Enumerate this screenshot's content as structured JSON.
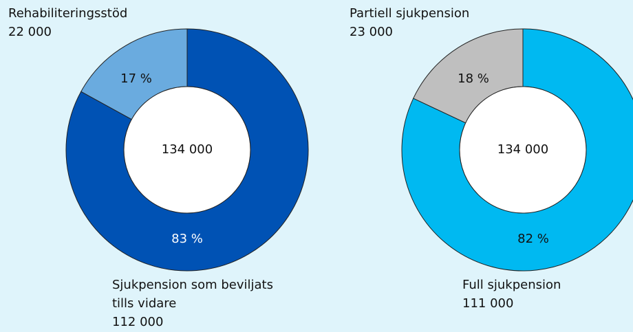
{
  "chart_data": [
    {
      "type": "pie",
      "categories": [
        "Sjukpension som beviljats tills vidare",
        "Rehabiliteringsstöd"
      ],
      "values": [
        83,
        17
      ],
      "value_labels": [
        "83 %",
        "17 %"
      ],
      "counts": [
        {
          "value": 112000,
          "label": "112 000"
        },
        {
          "value": 22000,
          "label": "22 000"
        }
      ],
      "total": {
        "value": 134000,
        "label": "134 000"
      },
      "colors": [
        "#0052b4",
        "#6aabdf"
      ]
    },
    {
      "type": "pie",
      "categories": [
        "Full sjukpension",
        "Partiell sjukpension"
      ],
      "values": [
        82,
        18
      ],
      "value_labels": [
        "82 %",
        "18 %"
      ],
      "counts": [
        {
          "value": 111000,
          "label": "111 000"
        },
        {
          "value": 23000,
          "label": "23 000"
        }
      ],
      "total": {
        "value": 134000,
        "label": "134 000"
      },
      "colors": [
        "#00b9f1",
        "#bfbfbf"
      ]
    }
  ]
}
